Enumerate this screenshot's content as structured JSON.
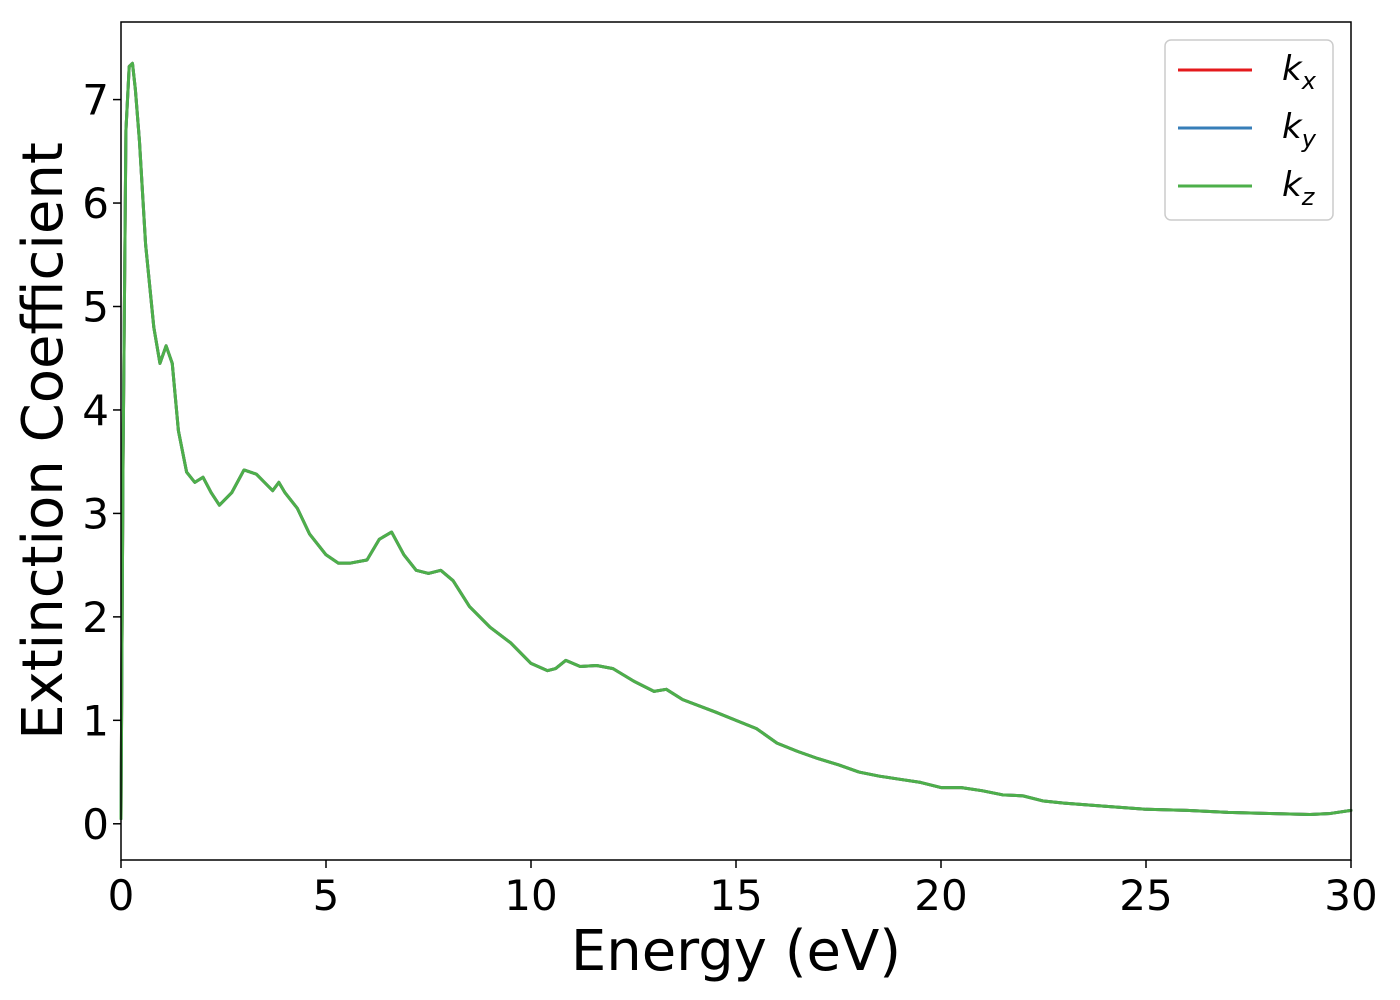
{
  "chart_data": {
    "type": "line",
    "title": "",
    "xlabel": "Energy (eV)",
    "ylabel": "Extinction Coefficient",
    "xlim": [
      0,
      30
    ],
    "ylim": [
      -0.35,
      7.75
    ],
    "xticks": [
      0,
      5,
      10,
      15,
      20,
      25,
      30
    ],
    "yticks": [
      0,
      1,
      2,
      3,
      4,
      5,
      6,
      7
    ],
    "grid": false,
    "legend_position": "top-right",
    "series": [
      {
        "name": "k",
        "subscript": "x",
        "color": "#e41a1c",
        "x": [
          0.0,
          0.05,
          0.12,
          0.2,
          0.28,
          0.35,
          0.45,
          0.6,
          0.8,
          0.95,
          1.1,
          1.25,
          1.4,
          1.6,
          1.8,
          2.0,
          2.2,
          2.4,
          2.7,
          3.0,
          3.3,
          3.5,
          3.7,
          3.85,
          4.0,
          4.3,
          4.6,
          5.0,
          5.3,
          5.6,
          6.0,
          6.3,
          6.6,
          6.9,
          7.2,
          7.5,
          7.8,
          8.1,
          8.5,
          9.0,
          9.5,
          10.0,
          10.4,
          10.6,
          10.85,
          11.2,
          11.6,
          12.0,
          12.5,
          13.0,
          13.3,
          13.7,
          14.5,
          15.0,
          15.5,
          16.0,
          16.5,
          17.0,
          17.5,
          18.0,
          18.5,
          19.0,
          19.5,
          20.0,
          20.5,
          21.0,
          21.5,
          22.0,
          22.5,
          23.0,
          24.0,
          25.0,
          26.0,
          27.0,
          28.0,
          29.0,
          29.5,
          30.0
        ],
        "y": [
          0.05,
          3.5,
          6.7,
          7.32,
          7.35,
          7.1,
          6.6,
          5.6,
          4.8,
          4.45,
          4.62,
          4.45,
          3.8,
          3.4,
          3.3,
          3.35,
          3.2,
          3.08,
          3.2,
          3.42,
          3.38,
          3.3,
          3.22,
          3.3,
          3.2,
          3.05,
          2.8,
          2.6,
          2.52,
          2.52,
          2.55,
          2.75,
          2.82,
          2.6,
          2.45,
          2.42,
          2.45,
          2.35,
          2.1,
          1.9,
          1.75,
          1.55,
          1.48,
          1.5,
          1.58,
          1.52,
          1.53,
          1.5,
          1.38,
          1.28,
          1.3,
          1.2,
          1.08,
          1.0,
          0.92,
          0.78,
          0.7,
          0.63,
          0.57,
          0.5,
          0.46,
          0.43,
          0.4,
          0.35,
          0.35,
          0.32,
          0.28,
          0.27,
          0.22,
          0.2,
          0.17,
          0.14,
          0.13,
          0.11,
          0.1,
          0.09,
          0.1,
          0.13
        ]
      },
      {
        "name": "k",
        "subscript": "y",
        "color": "#377eb8",
        "x": [
          0.0,
          0.05,
          0.12,
          0.2,
          0.28,
          0.35,
          0.45,
          0.6,
          0.8,
          0.95,
          1.1,
          1.25,
          1.4,
          1.6,
          1.8,
          2.0,
          2.2,
          2.4,
          2.7,
          3.0,
          3.3,
          3.5,
          3.7,
          3.85,
          4.0,
          4.3,
          4.6,
          5.0,
          5.3,
          5.6,
          6.0,
          6.3,
          6.6,
          6.9,
          7.2,
          7.5,
          7.8,
          8.1,
          8.5,
          9.0,
          9.5,
          10.0,
          10.4,
          10.6,
          10.85,
          11.2,
          11.6,
          12.0,
          12.5,
          13.0,
          13.3,
          13.7,
          14.5,
          15.0,
          15.5,
          16.0,
          16.5,
          17.0,
          17.5,
          18.0,
          18.5,
          19.0,
          19.5,
          20.0,
          20.5,
          21.0,
          21.5,
          22.0,
          22.5,
          23.0,
          24.0,
          25.0,
          26.0,
          27.0,
          28.0,
          29.0,
          29.5,
          30.0
        ],
        "y": [
          0.05,
          3.5,
          6.7,
          7.32,
          7.35,
          7.1,
          6.6,
          5.6,
          4.8,
          4.45,
          4.62,
          4.45,
          3.8,
          3.4,
          3.3,
          3.35,
          3.2,
          3.08,
          3.2,
          3.42,
          3.38,
          3.3,
          3.22,
          3.3,
          3.2,
          3.05,
          2.8,
          2.6,
          2.52,
          2.52,
          2.55,
          2.75,
          2.82,
          2.6,
          2.45,
          2.42,
          2.45,
          2.35,
          2.1,
          1.9,
          1.75,
          1.55,
          1.48,
          1.5,
          1.58,
          1.52,
          1.53,
          1.5,
          1.38,
          1.28,
          1.3,
          1.2,
          1.08,
          1.0,
          0.92,
          0.78,
          0.7,
          0.63,
          0.57,
          0.5,
          0.46,
          0.43,
          0.4,
          0.35,
          0.35,
          0.32,
          0.28,
          0.27,
          0.22,
          0.2,
          0.17,
          0.14,
          0.13,
          0.11,
          0.1,
          0.09,
          0.1,
          0.13
        ]
      },
      {
        "name": "k",
        "subscript": "z",
        "color": "#4daf4a",
        "x": [
          0.0,
          0.05,
          0.12,
          0.2,
          0.28,
          0.35,
          0.45,
          0.6,
          0.8,
          0.95,
          1.1,
          1.25,
          1.4,
          1.6,
          1.8,
          2.0,
          2.2,
          2.4,
          2.7,
          3.0,
          3.3,
          3.5,
          3.7,
          3.85,
          4.0,
          4.3,
          4.6,
          5.0,
          5.3,
          5.6,
          6.0,
          6.3,
          6.6,
          6.9,
          7.2,
          7.5,
          7.8,
          8.1,
          8.5,
          9.0,
          9.5,
          10.0,
          10.4,
          10.6,
          10.85,
          11.2,
          11.6,
          12.0,
          12.5,
          13.0,
          13.3,
          13.7,
          14.5,
          15.0,
          15.5,
          16.0,
          16.5,
          17.0,
          17.5,
          18.0,
          18.5,
          19.0,
          19.5,
          20.0,
          20.5,
          21.0,
          21.5,
          22.0,
          22.5,
          23.0,
          24.0,
          25.0,
          26.0,
          27.0,
          28.0,
          29.0,
          29.5,
          30.0
        ],
        "y": [
          0.05,
          3.5,
          6.7,
          7.32,
          7.35,
          7.1,
          6.6,
          5.6,
          4.8,
          4.45,
          4.62,
          4.45,
          3.8,
          3.4,
          3.3,
          3.35,
          3.2,
          3.08,
          3.2,
          3.42,
          3.38,
          3.3,
          3.22,
          3.3,
          3.2,
          3.05,
          2.8,
          2.6,
          2.52,
          2.52,
          2.55,
          2.75,
          2.82,
          2.6,
          2.45,
          2.42,
          2.45,
          2.35,
          2.1,
          1.9,
          1.75,
          1.55,
          1.48,
          1.5,
          1.58,
          1.52,
          1.53,
          1.5,
          1.38,
          1.28,
          1.3,
          1.2,
          1.08,
          1.0,
          0.92,
          0.78,
          0.7,
          0.63,
          0.57,
          0.5,
          0.46,
          0.43,
          0.4,
          0.35,
          0.35,
          0.32,
          0.28,
          0.27,
          0.22,
          0.2,
          0.17,
          0.14,
          0.13,
          0.11,
          0.1,
          0.09,
          0.1,
          0.13
        ]
      }
    ]
  }
}
